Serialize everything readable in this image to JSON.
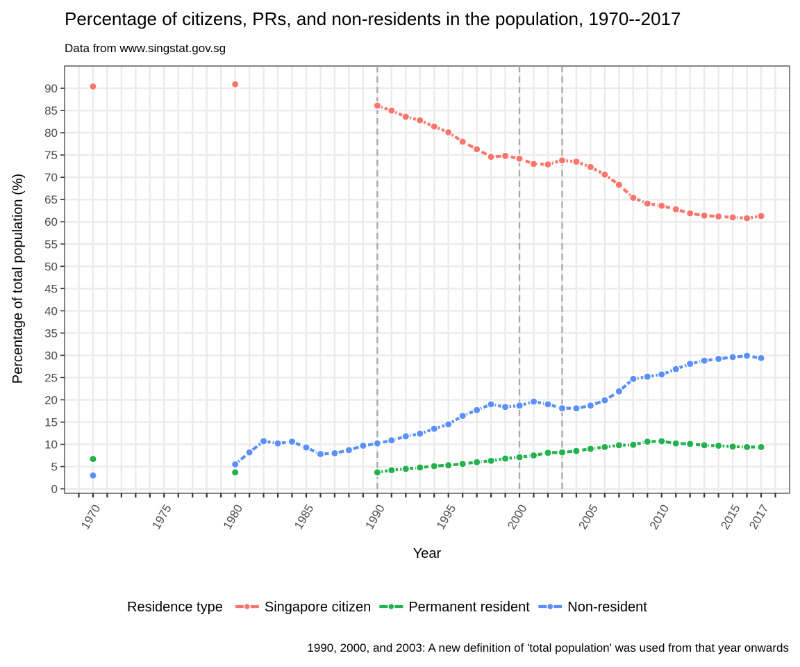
{
  "chart_data": {
    "type": "line",
    "title": "Percentage of citizens, PRs, and non-residents in the population, 1970--2017",
    "subtitle": "Data from www.singstat.gov.sg",
    "xlabel": "Year",
    "ylabel": "Percentage of total population (%)",
    "xlim": [
      1968,
      2019
    ],
    "ylim": [
      -1,
      95
    ],
    "x_ticks": [
      1970,
      1975,
      1980,
      1985,
      1990,
      1995,
      2000,
      2005,
      2010,
      2015,
      2017
    ],
    "y_ticks": [
      0,
      5,
      10,
      15,
      20,
      25,
      30,
      35,
      40,
      45,
      50,
      55,
      60,
      65,
      70,
      75,
      80,
      85,
      90
    ],
    "grid": true,
    "vlines": [
      1990,
      2000,
      2003
    ],
    "legend": {
      "title": "Residence type",
      "position": "bottom"
    },
    "caption": "1990, 2000, and 2003: A new definition of 'total population' was used from that year onwards",
    "series": [
      {
        "name": "Singapore citizen",
        "color": "#f8766d",
        "points": [
          [
            1970,
            90.4
          ],
          [
            1980,
            90.9
          ]
        ],
        "line": [
          [
            1990,
            86.1
          ],
          [
            1991,
            85.0
          ],
          [
            1992,
            83.6
          ],
          [
            1993,
            82.8
          ],
          [
            1994,
            81.4
          ],
          [
            1995,
            80.1
          ],
          [
            1996,
            78.0
          ],
          [
            1997,
            76.3
          ],
          [
            1998,
            74.6
          ],
          [
            1999,
            74.8
          ],
          [
            2000,
            74.2
          ],
          [
            2001,
            73.0
          ],
          [
            2002,
            72.9
          ],
          [
            2003,
            73.8
          ],
          [
            2004,
            73.5
          ],
          [
            2005,
            72.3
          ],
          [
            2006,
            70.6
          ],
          [
            2007,
            68.3
          ],
          [
            2008,
            65.4
          ],
          [
            2009,
            64.1
          ],
          [
            2010,
            63.6
          ],
          [
            2011,
            62.8
          ],
          [
            2012,
            61.9
          ],
          [
            2013,
            61.4
          ],
          [
            2014,
            61.2
          ],
          [
            2015,
            61.0
          ],
          [
            2016,
            60.8
          ],
          [
            2017,
            61.3
          ]
        ]
      },
      {
        "name": "Permanent resident",
        "color": "#22b14c",
        "points": [
          [
            1970,
            6.7
          ],
          [
            1980,
            3.7
          ]
        ],
        "line": [
          [
            1990,
            3.7
          ],
          [
            1991,
            4.2
          ],
          [
            1992,
            4.5
          ],
          [
            1993,
            4.8
          ],
          [
            1994,
            5.1
          ],
          [
            1995,
            5.3
          ],
          [
            1996,
            5.6
          ],
          [
            1997,
            6.0
          ],
          [
            1998,
            6.3
          ],
          [
            1999,
            6.8
          ],
          [
            2000,
            7.1
          ],
          [
            2001,
            7.5
          ],
          [
            2002,
            8.1
          ],
          [
            2003,
            8.2
          ],
          [
            2004,
            8.5
          ],
          [
            2005,
            9.0
          ],
          [
            2006,
            9.4
          ],
          [
            2007,
            9.8
          ],
          [
            2008,
            9.9
          ],
          [
            2009,
            10.6
          ],
          [
            2010,
            10.7
          ],
          [
            2011,
            10.2
          ],
          [
            2012,
            10.1
          ],
          [
            2013,
            9.8
          ],
          [
            2014,
            9.7
          ],
          [
            2015,
            9.5
          ],
          [
            2016,
            9.4
          ],
          [
            2017,
            9.4
          ]
        ]
      },
      {
        "name": "Non-resident",
        "color": "#5b8ff9",
        "points": [
          [
            1970,
            3.0
          ]
        ],
        "line": [
          [
            1980,
            5.5
          ],
          [
            1981,
            8.2
          ],
          [
            1982,
            10.7
          ],
          [
            1983,
            10.2
          ],
          [
            1984,
            10.6
          ],
          [
            1985,
            9.3
          ],
          [
            1986,
            7.8
          ],
          [
            1987,
            8.0
          ],
          [
            1988,
            8.7
          ],
          [
            1989,
            9.7
          ],
          [
            1990,
            10.2
          ],
          [
            1991,
            10.9
          ],
          [
            1992,
            11.8
          ],
          [
            1993,
            12.4
          ],
          [
            1994,
            13.5
          ],
          [
            1995,
            14.5
          ],
          [
            1996,
            16.4
          ],
          [
            1997,
            17.7
          ],
          [
            1998,
            19.0
          ],
          [
            1999,
            18.4
          ],
          [
            2000,
            18.7
          ],
          [
            2001,
            19.6
          ],
          [
            2002,
            19.0
          ],
          [
            2003,
            18.1
          ],
          [
            2004,
            18.1
          ],
          [
            2005,
            18.7
          ],
          [
            2006,
            19.9
          ],
          [
            2007,
            21.9
          ],
          [
            2008,
            24.7
          ],
          [
            2009,
            25.2
          ],
          [
            2010,
            25.7
          ],
          [
            2011,
            26.9
          ],
          [
            2012,
            28.1
          ],
          [
            2013,
            28.8
          ],
          [
            2014,
            29.2
          ],
          [
            2015,
            29.6
          ],
          [
            2016,
            29.9
          ],
          [
            2017,
            29.4
          ]
        ]
      }
    ]
  }
}
